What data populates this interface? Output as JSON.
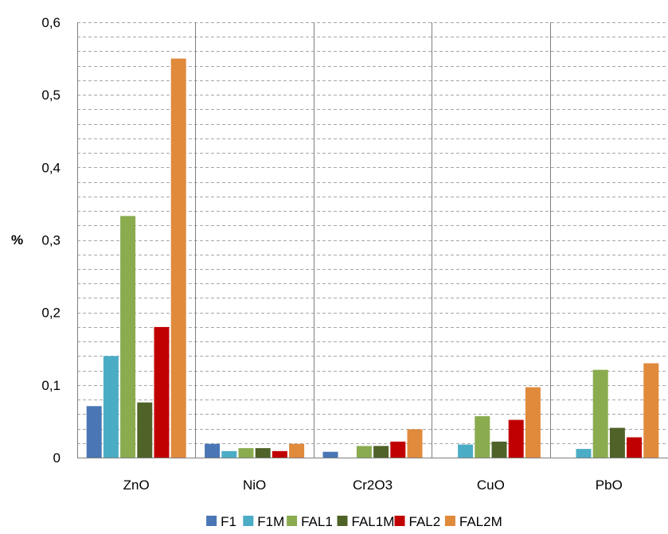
{
  "chart_data": {
    "type": "bar",
    "ylabel": "%",
    "xlabel": "",
    "ylim": [
      0,
      0.6
    ],
    "y_ticks": [
      "0",
      "0,1",
      "0,2",
      "0,3",
      "0,4",
      "0,5",
      "0,6"
    ],
    "y_tick_values": [
      0,
      0.1,
      0.2,
      0.3,
      0.4,
      0.5,
      0.6
    ],
    "minor_gridline_step": 0.02,
    "grid": true,
    "legend_position": "bottom",
    "categories": [
      "ZnO",
      "NiO",
      "Cr2O3",
      "CuO",
      "PbO"
    ],
    "series": [
      {
        "name": "F1",
        "color": "#4a76b5",
        "values": [
          0.071,
          0.019,
          0.008,
          0.0,
          0.0
        ]
      },
      {
        "name": "F1M",
        "color": "#4bacc6",
        "values": [
          0.14,
          0.009,
          0.0,
          0.018,
          0.012
        ]
      },
      {
        "name": "FAL1",
        "color": "#8aac4f",
        "values": [
          0.333,
          0.013,
          0.016,
          0.057,
          0.121
        ]
      },
      {
        "name": "FAL1M",
        "color": "#4f6228",
        "values": [
          0.076,
          0.013,
          0.016,
          0.022,
          0.041
        ]
      },
      {
        "name": "FAL2",
        "color": "#c00000",
        "values": [
          0.18,
          0.009,
          0.022,
          0.052,
          0.028
        ]
      },
      {
        "name": "FAL2M",
        "color": "#e08a3c",
        "values": [
          0.55,
          0.019,
          0.039,
          0.097,
          0.13
        ]
      }
    ]
  }
}
